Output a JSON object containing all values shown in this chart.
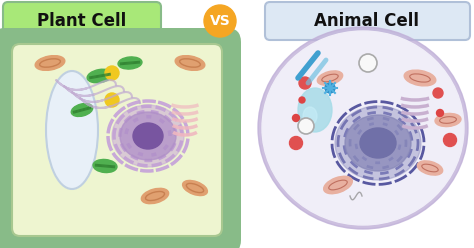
{
  "background_color": "#ffffff",
  "title_plant": "Plant Cell",
  "title_animal": "Animal Cell",
  "vs_text": "VS",
  "plant_label_bg": "#a8e878",
  "animal_label_bg": "#dde8f4",
  "vs_bg": "#f5a623",
  "plant_wall_color": "#88bb88",
  "plant_inner_bg": "#eef5d0",
  "plant_membrane_color": "#a8c890",
  "animal_cell_outer": "#c0b0d8",
  "animal_cell_bg": "#f0eef8",
  "nucleus_plant_chromatin": "#c0a0d0",
  "nucleus_plant_fill": "#b898cc",
  "nucleus_plant_core": "#7855a0",
  "nucleus_animal_chromatin": "#6060a0",
  "nucleus_animal_fill": "#9090c0",
  "nucleus_animal_core": "#6868a8",
  "vacuole_plant_color": "#e8f0f8",
  "vacuole_plant_border": "#c0d0e0",
  "chloroplast_color": "#50b050",
  "chloroplast_dark": "#308030",
  "mito_plant_color": "#e0a070",
  "mito_plant_inner": "#c88050",
  "mito_animal_color": "#e8b0a0",
  "golgi_plant_color": "#f0b8c0",
  "golgi_animal_color": "#c8b0d0",
  "er_plant_color": "#c0a8d0",
  "ribosome_color": "#e05050",
  "vesicle_color": "#a0d8e8",
  "lysosome_color": "#e05050",
  "yellow_dot": "#f0c820",
  "blue_rod1": "#40a0d0",
  "blue_rod2": "#70c0e0",
  "centriole_color": "#40a0d0",
  "pink_blob": "#e8b8c0",
  "small_red_dot": "#cc3333",
  "white_circle": "#f0f0f0"
}
